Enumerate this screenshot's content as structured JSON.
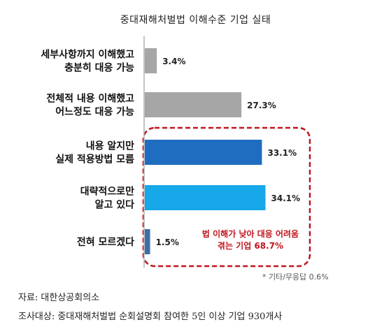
{
  "chart_data": {
    "type": "bar",
    "orientation": "horizontal",
    "title": "중대재해처벌법 이해수준 기업 실태",
    "categories": [
      [
        "세부사항까지 이해했고",
        "충분히 대응 가능"
      ],
      [
        "전체적 내용 이해했고",
        "어느정도 대응 가능"
      ],
      [
        "내용 알지만",
        "실제 적용방법 모름"
      ],
      [
        "대략적으로만",
        "알고 있다"
      ],
      [
        "전혀 모르겠다"
      ]
    ],
    "values": [
      3.4,
      27.3,
      33.1,
      34.1,
      1.5
    ],
    "value_labels": [
      "3.4%",
      "27.3%",
      "33.1%",
      "34.1%",
      "1.5%"
    ],
    "bar_colors": [
      "#a6a6a6",
      "#a6a6a6",
      "#1f6dc1",
      "#16a8e9",
      "#3e6ea8"
    ],
    "grid": false,
    "highlight": {
      "categories": [
        2,
        3,
        4
      ],
      "border_color": "#c0151c",
      "callout_lines": [
        "법 이해가 낮아 대응 어려움",
        "겪는 기업 68.7%"
      ]
    },
    "note": "* 기타/무응답 0.6%"
  },
  "sources": {
    "line1": "자료: 대한상공회의소",
    "line2": "조사대상: 중대재해처벌법 순회설명회 참여한 5인 이상 기업 930개사"
  }
}
